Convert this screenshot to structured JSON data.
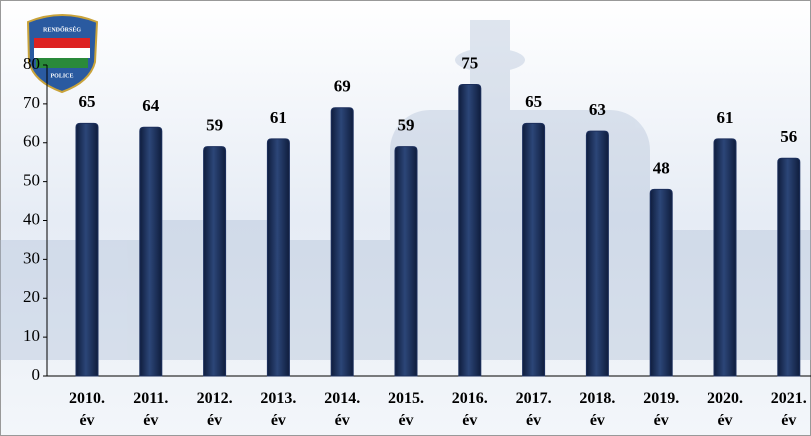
{
  "chart_data": {
    "type": "bar",
    "categories": [
      "2010. év",
      "2011. év",
      "2012. év",
      "2013. év",
      "2014. év",
      "2015. év",
      "2016. év",
      "2017. év",
      "2018. év",
      "2019. év",
      "2020. év",
      "2021. év"
    ],
    "values": [
      65,
      64,
      59,
      61,
      69,
      59,
      75,
      65,
      63,
      48,
      61,
      56
    ],
    "color": "#1c2f5c",
    "ylim": [
      0,
      80
    ],
    "yticks": [
      0,
      10,
      20,
      30,
      40,
      50,
      60,
      70,
      80
    ],
    "grid": false
  },
  "logo": {
    "top": "RENDŐRSÉG",
    "bottom": "POLICE"
  }
}
